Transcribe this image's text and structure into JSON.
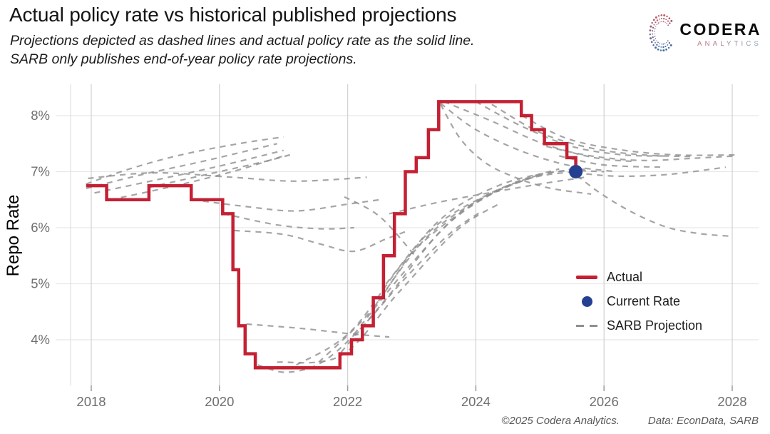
{
  "header": {
    "title": "Actual policy rate vs historical published projections",
    "subtitle1": "Projections depicted as dashed lines and actual policy rate as the solid line.",
    "subtitle2": "SARB only publishes end-of-year policy rate projections."
  },
  "logo": {
    "name": "CODERA",
    "sub": "ANALYTICS"
  },
  "footer": {
    "copyright": "©2025 Codera Analytics.",
    "source": "Data: EconData, SARB"
  },
  "legend": [
    {
      "label": "Actual",
      "type": "line",
      "color": "#c42033"
    },
    {
      "label": "Current Rate",
      "type": "dot",
      "color": "#254091"
    },
    {
      "label": "SARB Projection",
      "type": "dash",
      "color": "#8f8f8f"
    }
  ],
  "chart_data": {
    "type": "line",
    "title": "Actual policy rate vs historical published projections",
    "xlabel": "",
    "ylabel": "Repo Rate",
    "grid": true,
    "legend_position": "inside-right",
    "x_axis": {
      "range": [
        2017.6,
        2028.45
      ],
      "ticks": [
        {
          "value": 2018,
          "label": "2018"
        },
        {
          "value": 2020,
          "label": "2020"
        },
        {
          "value": 2022,
          "label": "2022"
        },
        {
          "value": 2024,
          "label": "2024"
        },
        {
          "value": 2026,
          "label": "2026"
        },
        {
          "value": 2028,
          "label": "2028"
        }
      ]
    },
    "y_axis": {
      "range": [
        3.2,
        8.55
      ],
      "ticks": [
        {
          "value": 8,
          "label": "8%"
        },
        {
          "value": 7,
          "label": "7%"
        },
        {
          "value": 6,
          "label": "6%"
        },
        {
          "value": 5,
          "label": "5%"
        },
        {
          "value": 4,
          "label": "4%"
        }
      ]
    },
    "colors": {
      "actual": "#c42033",
      "current_dot": "#254091",
      "projection": "#8f8f8f",
      "grid_h": "#e7e7e7",
      "grid_v": "#d4d4d4",
      "tick_text": "#6f6f6f",
      "axis_text": "#000000"
    },
    "actual_series": {
      "name": "Actual",
      "style": "step-after",
      "unit": "percent",
      "points": [
        [
          2017.92,
          6.75
        ],
        [
          2018.24,
          6.5
        ],
        [
          2018.9,
          6.75
        ],
        [
          2019.56,
          6.5
        ],
        [
          2020.05,
          6.25
        ],
        [
          2020.21,
          5.25
        ],
        [
          2020.3,
          4.25
        ],
        [
          2020.4,
          3.75
        ],
        [
          2020.56,
          3.5
        ],
        [
          2021.88,
          3.75
        ],
        [
          2022.06,
          4.0
        ],
        [
          2022.23,
          4.25
        ],
        [
          2022.4,
          4.75
        ],
        [
          2022.56,
          5.5
        ],
        [
          2022.73,
          6.25
        ],
        [
          2022.9,
          7.0
        ],
        [
          2023.07,
          7.25
        ],
        [
          2023.26,
          7.75
        ],
        [
          2023.42,
          8.25
        ],
        [
          2024.71,
          8.0
        ],
        [
          2024.87,
          7.75
        ],
        [
          2025.07,
          7.5
        ],
        [
          2025.42,
          7.25
        ],
        [
          2025.56,
          7.0
        ]
      ]
    },
    "current_rate": {
      "name": "Current Rate",
      "x": 2025.56,
      "y": 7.0
    },
    "projections": {
      "name": "SARB Projection",
      "style": "dashed",
      "lines": [
        [
          [
            2017.92,
            6.78
          ],
          [
            2018.6,
            7.05
          ],
          [
            2019.4,
            7.3
          ],
          [
            2020.3,
            7.5
          ],
          [
            2021.0,
            7.62
          ]
        ],
        [
          [
            2017.92,
            6.7
          ],
          [
            2018.8,
            6.95
          ],
          [
            2019.8,
            7.2
          ],
          [
            2020.9,
            7.5
          ]
        ],
        [
          [
            2018.05,
            6.62
          ],
          [
            2019.0,
            6.85
          ],
          [
            2020.0,
            7.1
          ],
          [
            2021.0,
            7.38
          ]
        ],
        [
          [
            2018.3,
            6.5
          ],
          [
            2019.2,
            6.72
          ],
          [
            2020.2,
            7.0
          ],
          [
            2021.05,
            7.3
          ]
        ],
        [
          [
            2018.9,
            6.72
          ],
          [
            2019.8,
            6.95
          ],
          [
            2020.7,
            7.18
          ],
          [
            2021.1,
            7.3
          ]
        ],
        [
          [
            2017.95,
            6.88
          ],
          [
            2019.0,
            6.98
          ],
          [
            2020.2,
            6.9
          ],
          [
            2021.2,
            6.83
          ],
          [
            2022.3,
            6.9
          ]
        ],
        [
          [
            2019.58,
            6.5
          ],
          [
            2020.4,
            6.38
          ],
          [
            2021.2,
            6.3
          ],
          [
            2022.0,
            6.42
          ],
          [
            2022.5,
            6.5
          ]
        ],
        [
          [
            2020.06,
            6.25
          ],
          [
            2020.9,
            6.05
          ],
          [
            2021.6,
            5.98
          ],
          [
            2022.1,
            6.0
          ]
        ],
        [
          [
            2021.95,
            6.55
          ],
          [
            2022.5,
            6.2
          ],
          [
            2023.05,
            5.5
          ]
        ],
        [
          [
            2020.23,
            5.95
          ],
          [
            2021.0,
            5.88
          ],
          [
            2021.6,
            5.7
          ],
          [
            2022.1,
            5.58
          ],
          [
            2022.6,
            5.8
          ],
          [
            2022.95,
            5.95
          ]
        ],
        [
          [
            2020.42,
            4.28
          ],
          [
            2021.3,
            4.2
          ],
          [
            2022.1,
            4.1
          ],
          [
            2022.65,
            4.05
          ]
        ],
        [
          [
            2020.6,
            3.55
          ],
          [
            2021.05,
            3.42
          ],
          [
            2021.6,
            3.6
          ],
          [
            2022.2,
            4.2
          ],
          [
            2022.9,
            5.1
          ],
          [
            2023.6,
            5.9
          ],
          [
            2024.1,
            6.3
          ]
        ],
        [
          [
            2020.9,
            3.6
          ],
          [
            2021.9,
            3.72
          ],
          [
            2022.8,
            4.85
          ],
          [
            2023.7,
            5.95
          ],
          [
            2024.4,
            6.45
          ]
        ],
        [
          [
            2021.2,
            3.55
          ],
          [
            2022.05,
            4.15
          ],
          [
            2023.0,
            5.55
          ],
          [
            2024.0,
            6.45
          ],
          [
            2024.75,
            6.85
          ]
        ],
        [
          [
            2021.55,
            3.6
          ],
          [
            2022.35,
            4.5
          ],
          [
            2023.25,
            5.9
          ],
          [
            2024.2,
            6.6
          ],
          [
            2025.0,
            6.95
          ]
        ],
        [
          [
            2021.9,
            3.78
          ],
          [
            2022.65,
            4.8
          ],
          [
            2023.55,
            6.05
          ],
          [
            2024.5,
            6.75
          ],
          [
            2025.3,
            7.05
          ]
        ],
        [
          [
            2022.1,
            4.1
          ],
          [
            2022.95,
            5.3
          ],
          [
            2023.85,
            6.35
          ],
          [
            2024.75,
            6.85
          ],
          [
            2025.5,
            7.0
          ]
        ],
        [
          [
            2022.42,
            4.6
          ],
          [
            2023.25,
            5.85
          ],
          [
            2024.15,
            6.55
          ],
          [
            2025.05,
            6.95
          ],
          [
            2025.75,
            7.05
          ]
        ],
        [
          [
            2022.6,
            5.0
          ],
          [
            2023.45,
            6.15
          ],
          [
            2024.35,
            6.75
          ],
          [
            2025.25,
            7.0
          ],
          [
            2026.0,
            7.0
          ]
        ],
        [
          [
            2022.65,
            6.25
          ],
          [
            2023.4,
            6.45
          ],
          [
            2024.2,
            6.62
          ],
          [
            2025.0,
            6.78
          ],
          [
            2025.7,
            6.9
          ]
        ],
        [
          [
            2023.45,
            8.2
          ],
          [
            2023.75,
            7.6
          ],
          [
            2024.1,
            7.2
          ],
          [
            2024.5,
            6.95
          ],
          [
            2025.1,
            6.72
          ],
          [
            2025.8,
            6.6
          ]
        ],
        [
          [
            2023.45,
            8.22
          ],
          [
            2024.0,
            7.75
          ],
          [
            2024.75,
            7.35
          ],
          [
            2025.5,
            7.1
          ],
          [
            2026.2,
            7.0
          ]
        ],
        [
          [
            2023.5,
            8.25
          ],
          [
            2024.25,
            7.9
          ],
          [
            2025.05,
            7.5
          ],
          [
            2025.85,
            7.25
          ],
          [
            2026.5,
            7.18
          ]
        ],
        [
          [
            2024.0,
            8.25
          ],
          [
            2024.7,
            7.82
          ],
          [
            2025.5,
            7.45
          ],
          [
            2026.3,
            7.3
          ],
          [
            2027.0,
            7.28
          ]
        ],
        [
          [
            2024.25,
            8.2
          ],
          [
            2025.0,
            7.7
          ],
          [
            2025.8,
            7.42
          ],
          [
            2026.6,
            7.3
          ],
          [
            2027.35,
            7.27
          ]
        ],
        [
          [
            2024.72,
            8.0
          ],
          [
            2025.4,
            7.6
          ],
          [
            2026.2,
            7.4
          ],
          [
            2027.1,
            7.3
          ],
          [
            2028.05,
            7.3
          ]
        ],
        [
          [
            2025.1,
            7.45
          ],
          [
            2025.8,
            7.28
          ],
          [
            2026.6,
            7.2
          ],
          [
            2027.4,
            7.24
          ],
          [
            2028.05,
            7.28
          ]
        ],
        [
          [
            2025.3,
            7.28
          ],
          [
            2026.0,
            7.12
          ],
          [
            2026.9,
            7.08
          ]
        ],
        [
          [
            2025.45,
            7.05
          ],
          [
            2025.9,
            6.65
          ],
          [
            2026.4,
            6.3
          ],
          [
            2026.95,
            6.02
          ],
          [
            2027.45,
            5.9
          ],
          [
            2027.95,
            5.85
          ]
        ],
        [
          [
            2025.56,
            6.98
          ],
          [
            2026.2,
            6.92
          ],
          [
            2027.0,
            6.95
          ],
          [
            2027.9,
            7.08
          ]
        ]
      ]
    }
  }
}
